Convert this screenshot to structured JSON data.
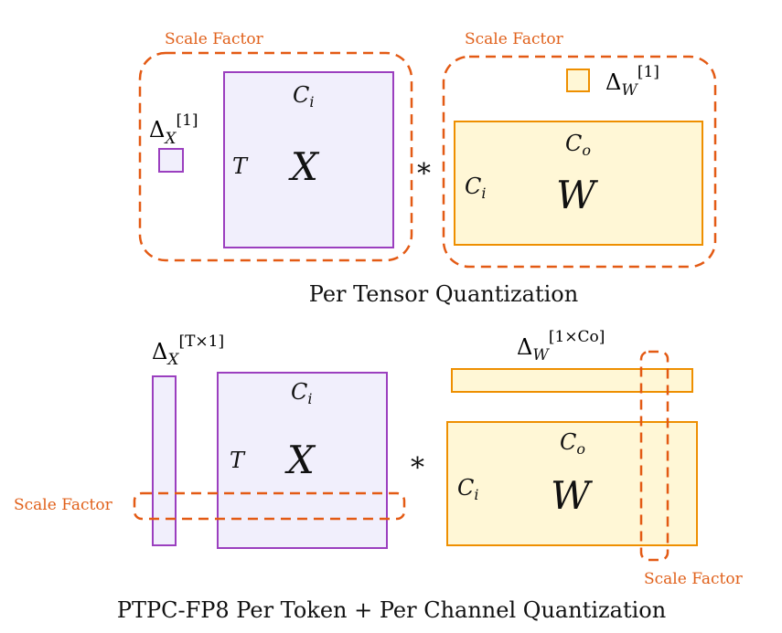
{
  "scale_factor_label": "Scale Factor",
  "top": {
    "title": "Per Tensor Quantization",
    "delta_x": "Δ",
    "delta_x_sub": "X",
    "delta_x_sup": "[1]",
    "delta_w": "Δ",
    "delta_w_sub": "W",
    "delta_w_sup": "[1]",
    "x_col": "C",
    "x_col_sub": "i",
    "x_row": "T",
    "x_label": "X",
    "op": "*",
    "w_col": "C",
    "w_col_sub": "o",
    "w_row": "C",
    "w_row_sub": "i",
    "w_label": "W"
  },
  "bottom": {
    "title": "PTPC-FP8 Per Token + Per Channel Quantization",
    "delta_x": "Δ",
    "delta_x_sub": "X",
    "delta_x_sup": "[T×1]",
    "delta_w": "Δ",
    "delta_w_sub": "W",
    "delta_w_sup": "[1×Co]",
    "x_col": "C",
    "x_col_sub": "i",
    "x_row": "T",
    "x_label": "X",
    "op": "*",
    "w_col": "C",
    "w_col_sub": "o",
    "w_row": "C",
    "w_row_sub": "i",
    "w_label": "W"
  },
  "colors": {
    "activation": "#9b3fbf",
    "weight": "#ee8f00",
    "scale": "#e35a14"
  }
}
